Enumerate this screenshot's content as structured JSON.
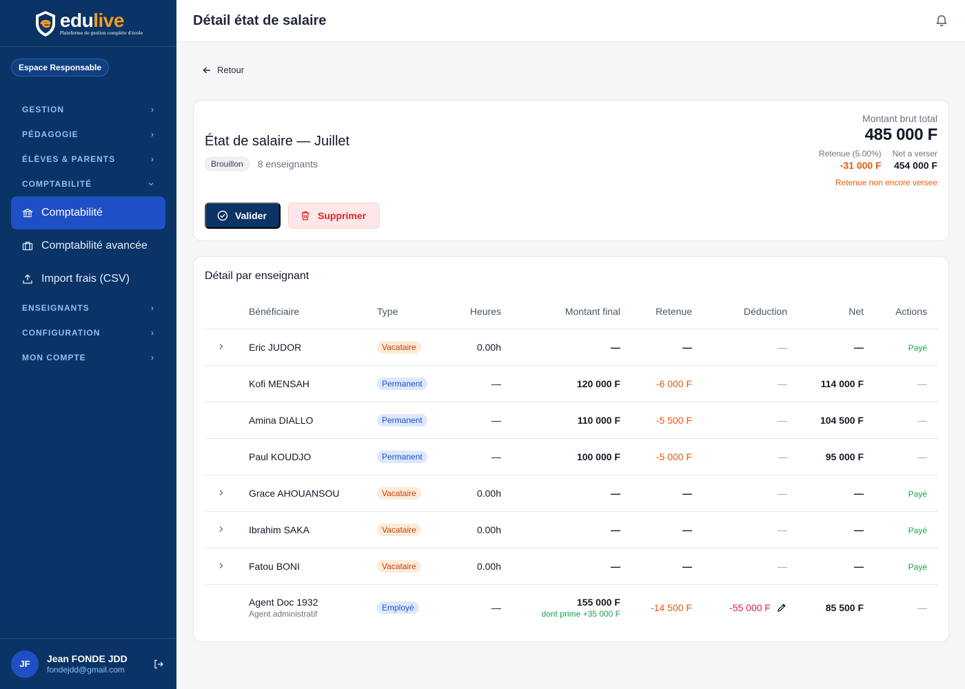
{
  "app": {
    "logo_word_a": "edu",
    "logo_word_b": "live",
    "logo_tagline": "Plateforme de gestion complète d'école",
    "space_badge": "Espace Responsable"
  },
  "sidebar": {
    "sections": [
      {
        "label": "GESTION"
      },
      {
        "label": "PÉDAGOGIE"
      },
      {
        "label": "ÉLÈVES & PARENTS"
      },
      {
        "label": "COMPTABILITÉ"
      },
      {
        "label": "ENSEIGNANTS"
      },
      {
        "label": "CONFIGURATION"
      },
      {
        "label": "MON COMPTE"
      }
    ],
    "compta_items": [
      {
        "label": "Comptabilité",
        "icon": "bank-icon",
        "active": true
      },
      {
        "label": "Comptabilité avancée",
        "icon": "briefcase-icon",
        "active": false
      },
      {
        "label": "Import frais (CSV)",
        "icon": "upload-icon",
        "active": false
      }
    ]
  },
  "user": {
    "initials": "JF",
    "name": "Jean FONDE JDD",
    "email": "fondejdd@gmail.com"
  },
  "header": {
    "title": "Détail état de salaire"
  },
  "back_label": "Retour",
  "summary": {
    "title": "État de salaire — Juillet",
    "status": "Brouillon",
    "teachers_count": "8 enseignants",
    "gross_label": "Montant brut total",
    "gross_value": "485 000 F",
    "retenue_label": "Retenue (5.00%)",
    "retenue_value": "-31 000 F",
    "net_label": "Net a verser",
    "net_value": "454 000 F",
    "note": "Retenue non encore versee",
    "validate_label": "Valider",
    "delete_label": "Supprimer"
  },
  "detail": {
    "title": "Détail par enseignant",
    "columns": [
      "Bénéficiaire",
      "Type",
      "Heures",
      "Montant final",
      "Retenue",
      "Déduction",
      "Net",
      "Actions"
    ],
    "rows": [
      {
        "expand": true,
        "name": "Eric JUDOR",
        "sub": "",
        "type": "Vacataire",
        "type_kind": "vac",
        "hours": "0.00h",
        "amount": "—",
        "amount_sub": "",
        "retenue": "—",
        "deduction": "—",
        "net": "—",
        "action": "Payé"
      },
      {
        "expand": false,
        "name": "Kofi MENSAH",
        "sub": "",
        "type": "Permanent",
        "type_kind": "perm",
        "hours": "—",
        "amount": "120 000 F",
        "amount_sub": "",
        "retenue": "-6 000 F",
        "deduction": "—",
        "net": "114 000 F",
        "action": "—"
      },
      {
        "expand": false,
        "name": "Amina DIALLO",
        "sub": "",
        "type": "Permanent",
        "type_kind": "perm",
        "hours": "—",
        "amount": "110 000 F",
        "amount_sub": "",
        "retenue": "-5 500 F",
        "deduction": "—",
        "net": "104 500 F",
        "action": "—"
      },
      {
        "expand": false,
        "name": "Paul KOUDJO",
        "sub": "",
        "type": "Permanent",
        "type_kind": "perm",
        "hours": "—",
        "amount": "100 000 F",
        "amount_sub": "",
        "retenue": "-5 000 F",
        "deduction": "—",
        "net": "95 000 F",
        "action": "—"
      },
      {
        "expand": true,
        "name": "Grace AHOUANSOU",
        "sub": "",
        "type": "Vacataire",
        "type_kind": "vac",
        "hours": "0.00h",
        "amount": "—",
        "amount_sub": "",
        "retenue": "—",
        "deduction": "—",
        "net": "—",
        "action": "Payé"
      },
      {
        "expand": true,
        "name": "Ibrahim SAKA",
        "sub": "",
        "type": "Vacataire",
        "type_kind": "vac",
        "hours": "0.00h",
        "amount": "—",
        "amount_sub": "",
        "retenue": "—",
        "deduction": "—",
        "net": "—",
        "action": "Payé"
      },
      {
        "expand": true,
        "name": "Fatou BONI",
        "sub": "",
        "type": "Vacataire",
        "type_kind": "vac",
        "hours": "0.00h",
        "amount": "—",
        "amount_sub": "",
        "retenue": "—",
        "deduction": "—",
        "net": "—",
        "action": "Payé"
      },
      {
        "expand": false,
        "name": "Agent Doc 1932",
        "sub": "Agent administratif",
        "type": "Employé",
        "type_kind": "emp",
        "hours": "—",
        "amount": "155 000 F",
        "amount_sub": "dont prime +35 000 F",
        "retenue": "-14 500 F",
        "deduction": "-55 000 F",
        "deduction_editable": true,
        "net": "85 500 F",
        "action": "—"
      }
    ]
  },
  "colors": {
    "sidebar_bg": "#0a3366",
    "active_item": "#1f4fc4",
    "brand_orange": "#f39c1f",
    "danger": "#dc2626",
    "warning": "#ea580c",
    "success": "#16a34a"
  }
}
